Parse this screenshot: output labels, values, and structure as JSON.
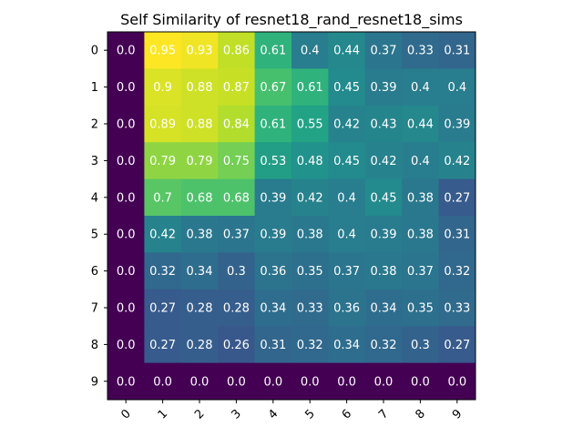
{
  "chart_data": {
    "type": "heatmap",
    "title": "Self Similarity of resnet18_rand_resnet18_sims",
    "xlabel": "",
    "ylabel": "",
    "x_ticks": [
      "0",
      "1",
      "2",
      "3",
      "4",
      "5",
      "6",
      "7",
      "8",
      "9"
    ],
    "y_ticks": [
      "0",
      "1",
      "2",
      "3",
      "4",
      "5",
      "6",
      "7",
      "8",
      "9"
    ],
    "colormap": "viridis",
    "vmin": 0.0,
    "vmax": 0.95,
    "grid": false,
    "values": [
      [
        0.0,
        0.95,
        0.93,
        0.86,
        0.61,
        0.4,
        0.44,
        0.37,
        0.33,
        0.31
      ],
      [
        0.0,
        0.9,
        0.88,
        0.87,
        0.67,
        0.61,
        0.45,
        0.39,
        0.4,
        0.4
      ],
      [
        0.0,
        0.89,
        0.88,
        0.84,
        0.61,
        0.55,
        0.42,
        0.43,
        0.44,
        0.39
      ],
      [
        0.0,
        0.79,
        0.79,
        0.75,
        0.53,
        0.48,
        0.45,
        0.42,
        0.4,
        0.42
      ],
      [
        0.0,
        0.7,
        0.68,
        0.68,
        0.39,
        0.42,
        0.4,
        0.45,
        0.38,
        0.27
      ],
      [
        0.0,
        0.42,
        0.38,
        0.37,
        0.39,
        0.38,
        0.4,
        0.39,
        0.38,
        0.31
      ],
      [
        0.0,
        0.32,
        0.34,
        0.3,
        0.36,
        0.35,
        0.37,
        0.38,
        0.37,
        0.32
      ],
      [
        0.0,
        0.27,
        0.28,
        0.28,
        0.34,
        0.33,
        0.36,
        0.34,
        0.35,
        0.33
      ],
      [
        0.0,
        0.27,
        0.28,
        0.26,
        0.31,
        0.32,
        0.34,
        0.32,
        0.3,
        0.27
      ],
      [
        0.0,
        0.0,
        0.0,
        0.0,
        0.0,
        0.0,
        0.0,
        0.0,
        0.0,
        0.0
      ]
    ],
    "value_labels": [
      [
        "0.0",
        "0.95",
        "0.93",
        "0.86",
        "0.61",
        "0.4",
        "0.44",
        "0.37",
        "0.33",
        "0.31"
      ],
      [
        "0.0",
        "0.9",
        "0.88",
        "0.87",
        "0.67",
        "0.61",
        "0.45",
        "0.39",
        "0.4",
        "0.4"
      ],
      [
        "0.0",
        "0.89",
        "0.88",
        "0.84",
        "0.61",
        "0.55",
        "0.42",
        "0.43",
        "0.44",
        "0.39"
      ],
      [
        "0.0",
        "0.79",
        "0.79",
        "0.75",
        "0.53",
        "0.48",
        "0.45",
        "0.42",
        "0.4",
        "0.42"
      ],
      [
        "0.0",
        "0.7",
        "0.68",
        "0.68",
        "0.39",
        "0.42",
        "0.4",
        "0.45",
        "0.38",
        "0.27"
      ],
      [
        "0.0",
        "0.42",
        "0.38",
        "0.37",
        "0.39",
        "0.38",
        "0.4",
        "0.39",
        "0.38",
        "0.31"
      ],
      [
        "0.0",
        "0.32",
        "0.34",
        "0.3",
        "0.36",
        "0.35",
        "0.37",
        "0.38",
        "0.37",
        "0.32"
      ],
      [
        "0.0",
        "0.27",
        "0.28",
        "0.28",
        "0.34",
        "0.33",
        "0.36",
        "0.34",
        "0.35",
        "0.33"
      ],
      [
        "0.0",
        "0.27",
        "0.28",
        "0.26",
        "0.31",
        "0.32",
        "0.34",
        "0.32",
        "0.3",
        "0.27"
      ],
      [
        "0.0",
        "0.0",
        "0.0",
        "0.0",
        "0.0",
        "0.0",
        "0.0",
        "0.0",
        "0.0",
        "0.0"
      ]
    ]
  }
}
